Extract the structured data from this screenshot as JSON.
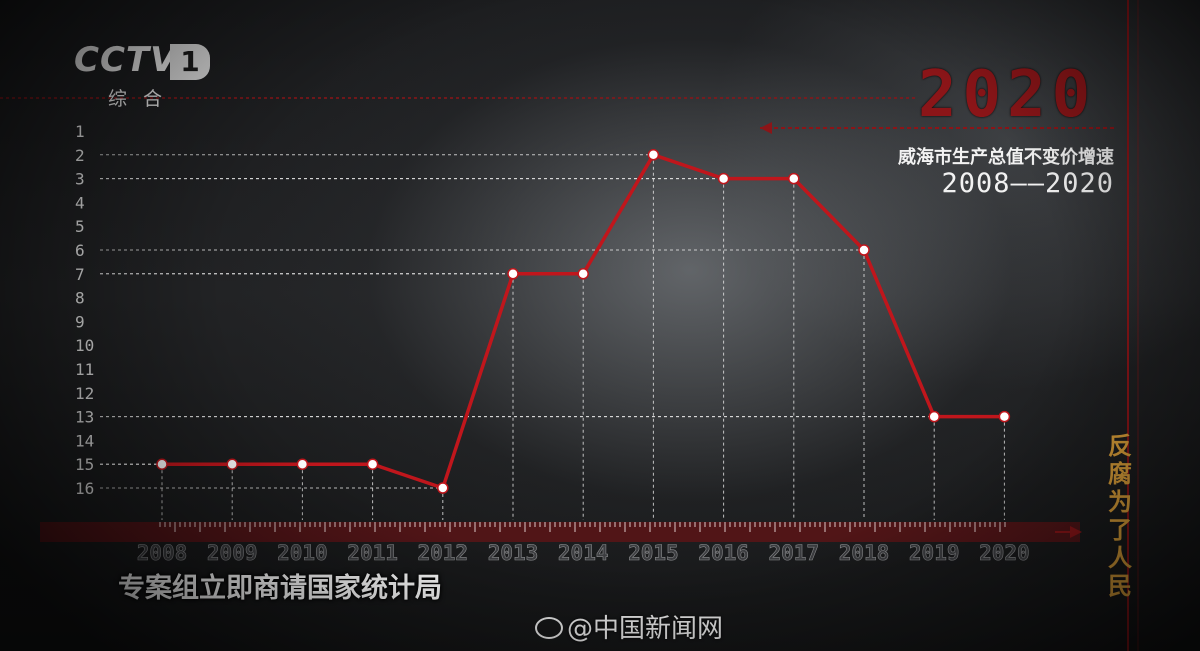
{
  "logo": {
    "brand": "CCTV",
    "channel_num": "1",
    "channel_name": "综合"
  },
  "header": {
    "big_year": "2020",
    "title": "威海市生产总值不变价增速",
    "subtitle": "2008——2020"
  },
  "side_title": "反腐为了人民",
  "caption": "专案组立即商请国家统计局",
  "watermark": "@中国新闻网",
  "colors": {
    "line": "#c0161c",
    "accent": "#8b1518",
    "side_title": "#e0a33a"
  },
  "chart_data": {
    "type": "line",
    "title": "威海市生产总值不变价增速",
    "subtitle": "2008——2020",
    "xlabel": "",
    "ylabel": "",
    "x": [
      "2008",
      "2009",
      "2010",
      "2011",
      "2012",
      "2013",
      "2014",
      "2015",
      "2016",
      "2017",
      "2018",
      "2019",
      "2020"
    ],
    "y_ticks": [
      "1",
      "2",
      "3",
      "4",
      "5",
      "6",
      "7",
      "8",
      "9",
      "10",
      "11",
      "12",
      "13",
      "14",
      "15",
      "16"
    ],
    "ylim": [
      1,
      16
    ],
    "y_inverted": true,
    "series": [
      {
        "values": [
          15,
          15,
          15,
          15,
          16,
          7,
          7,
          2,
          3,
          3,
          6,
          13,
          13
        ]
      }
    ],
    "grid": "dashed guides from each point"
  }
}
